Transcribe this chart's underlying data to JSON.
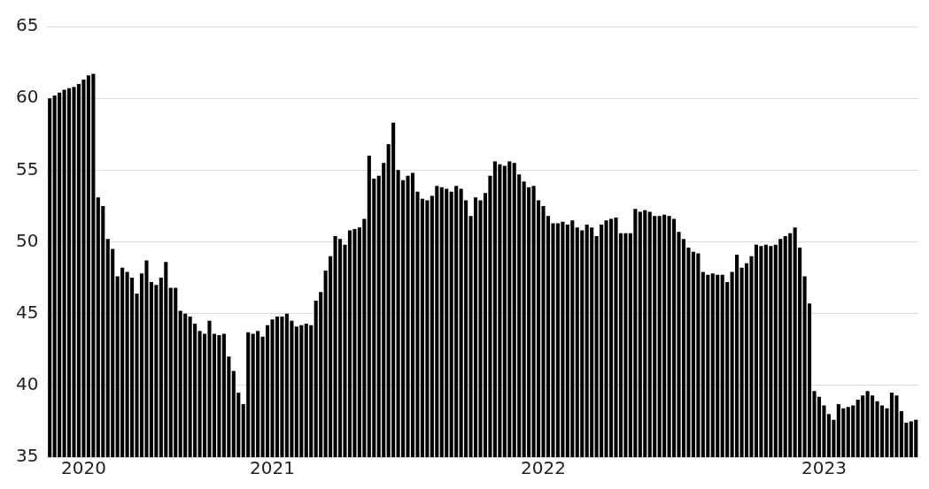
{
  "chart_data": {
    "type": "bar",
    "categories": [
      null,
      null,
      null,
      null,
      null,
      null,
      null,
      "2020",
      null,
      null,
      null,
      null,
      null,
      null,
      null,
      null,
      null,
      null,
      null,
      null,
      null,
      null,
      null,
      null,
      null,
      null,
      null,
      null,
      null,
      null,
      null,
      null,
      null,
      null,
      null,
      null,
      null,
      null,
      null,
      null,
      null,
      null,
      null,
      null,
      null,
      null,
      "2021",
      null,
      null,
      null,
      null,
      null,
      null,
      null,
      null,
      null,
      null,
      null,
      null,
      null,
      null,
      null,
      null,
      null,
      null,
      null,
      null,
      null,
      null,
      null,
      null,
      null,
      null,
      null,
      null,
      null,
      null,
      null,
      null,
      null,
      null,
      null,
      null,
      null,
      null,
      null,
      null,
      null,
      null,
      null,
      null,
      null,
      null,
      null,
      null,
      null,
      null,
      null,
      null,
      null,
      null,
      null,
      "2022",
      null,
      null,
      null,
      null,
      null,
      null,
      null,
      null,
      null,
      null,
      null,
      null,
      null,
      null,
      null,
      null,
      null,
      null,
      null,
      null,
      null,
      null,
      null,
      null,
      null,
      null,
      null,
      null,
      null,
      null,
      null,
      null,
      null,
      null,
      null,
      null,
      null,
      null,
      null,
      null,
      null,
      null,
      null,
      null,
      null,
      null,
      null,
      null,
      null,
      null,
      null,
      null,
      null,
      null,
      null,
      null,
      null,
      "2023",
      null,
      null,
      null,
      null,
      null,
      null,
      null,
      null,
      null,
      null,
      null,
      null,
      null,
      null,
      null,
      null,
      null,
      null,
      null
    ],
    "values": [
      60.0,
      60.2,
      60.4,
      60.6,
      60.7,
      60.8,
      61.0,
      61.3,
      61.6,
      61.7,
      53.1,
      52.5,
      50.2,
      49.5,
      47.6,
      48.2,
      47.9,
      47.5,
      46.4,
      47.8,
      48.7,
      47.2,
      47.0,
      47.5,
      48.6,
      46.8,
      46.8,
      45.2,
      45.0,
      44.8,
      44.3,
      43.8,
      43.6,
      44.5,
      43.6,
      43.5,
      43.6,
      42.0,
      41.0,
      39.5,
      38.7,
      43.7,
      43.6,
      43.8,
      43.4,
      44.2,
      44.6,
      44.8,
      44.8,
      45.0,
      44.5,
      44.1,
      44.2,
      44.3,
      44.2,
      45.9,
      46.5,
      48.0,
      49.0,
      50.4,
      50.2,
      49.8,
      50.8,
      50.9,
      51.0,
      51.6,
      56.0,
      54.4,
      54.6,
      55.5,
      56.8,
      58.3,
      55.0,
      54.3,
      54.6,
      54.8,
      53.5,
      53.0,
      52.9,
      53.2,
      53.9,
      53.8,
      53.7,
      53.5,
      53.9,
      53.7,
      52.9,
      51.8,
      53.1,
      52.9,
      53.4,
      54.6,
      55.6,
      55.4,
      55.3,
      55.6,
      55.5,
      54.7,
      54.2,
      53.8,
      53.9,
      52.9,
      52.5,
      51.8,
      51.3,
      51.3,
      51.4,
      51.2,
      51.5,
      51.0,
      50.8,
      51.2,
      51.0,
      50.4,
      51.2,
      51.5,
      51.6,
      51.7,
      50.6,
      50.6,
      50.6,
      52.3,
      52.1,
      52.2,
      52.1,
      51.8,
      51.8,
      51.9,
      51.8,
      51.6,
      50.7,
      50.2,
      49.6,
      49.3,
      49.2,
      47.9,
      47.7,
      47.8,
      47.7,
      47.7,
      47.2,
      47.9,
      49.1,
      48.2,
      48.5,
      49.0,
      49.8,
      49.7,
      49.8,
      49.7,
      49.8,
      50.2,
      50.4,
      50.6,
      51.0,
      49.6,
      47.6,
      45.7,
      39.6,
      39.2,
      38.6,
      38.0,
      37.6,
      38.7,
      38.4,
      38.5,
      38.6,
      39.0,
      39.3,
      39.6,
      39.3,
      38.9,
      38.6,
      38.4,
      39.5,
      39.3,
      38.2,
      37.4,
      37.5,
      37.6
    ],
    "color": "#000000",
    "ylim": [
      35,
      65
    ],
    "yticks": [
      35,
      40,
      45,
      50,
      55,
      60,
      65
    ],
    "grid": "y"
  }
}
